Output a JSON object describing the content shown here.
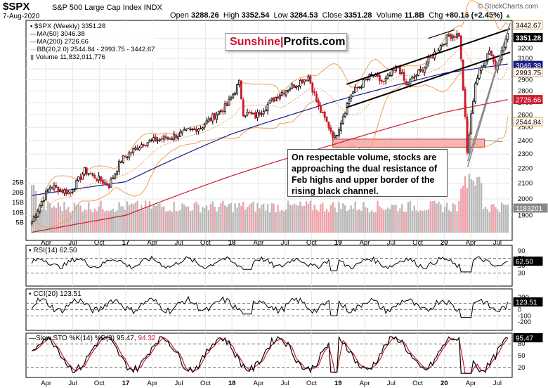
{
  "header": {
    "ticker": "$SPX",
    "name": "S&P 500 Large Cap Index INDX",
    "date": "7-Aug-2020",
    "open_label": "Open",
    "open": "3288.26",
    "high_label": "High",
    "high": "3352.54",
    "low_label": "Low",
    "low": "3284.53",
    "close_label": "Close",
    "close": "3351.28",
    "volume_label": "Volume",
    "volume": "11.8B",
    "chg_label": "Chg",
    "chg": "+80.16 (+2.45%)",
    "copyright": "© StockCharts.com",
    "chg_arrow_icon": "up-triangle-icon"
  },
  "legend": {
    "price": "$SPX (Weekly) 3351.28",
    "ma50": "MA(50) 3046.38",
    "ma200": "MA(200) 2726.66",
    "bb": "BB(20,2.0) 2544.84 - 2993.75 - 3442.67",
    "volume": "Volume 11,832,011,776"
  },
  "logo": {
    "part1": "Sunshine",
    "part2": "Profits.com"
  },
  "annotation": {
    "lines": [
      "On respectable volume, stocks are",
      "approaching the dual resistance of",
      "Feb highs and upper border of the",
      "rising black channel."
    ]
  },
  "price_badges": {
    "bb_upper": "3442.67",
    "close": "3351.28",
    "ma50": "3046.38",
    "bb_mid": "2993.75",
    "ma200": "2726.66",
    "bb_lower": "2544.84",
    "volume": "11832011776",
    "rsi": "62.50",
    "cci": "123.51",
    "sto": "95.47"
  },
  "panels": {
    "rsi_label": "RSI(14) 62.50",
    "cci_label": "CCI(20) 123.51",
    "sto_label_a": "Slow STO %K(14) %D(3) 95.47,",
    "sto_label_b": "94.32"
  },
  "colors": {
    "up": "#000000",
    "down": "#cc1b2b",
    "ma50": "#1a1f8c",
    "ma200": "#cc1b2b",
    "bb": "#f0a050",
    "volume_up": "#b8b8b8",
    "volume_down": "#f0a0a8",
    "rsi_fill": "#3d6b3d",
    "cci_fill_down": "#7a3030",
    "sto_k": "#000000",
    "sto_d": "#cc1b2b",
    "highlight_fill": "#f4a8a8",
    "logo_red": "#c8102e"
  },
  "chart_data": {
    "type": "candlestick",
    "price_axis": {
      "ylim": [
        1800,
        3500
      ],
      "ticks": [
        1900,
        2000,
        2100,
        2200,
        2300,
        2400,
        2500,
        2600,
        2700,
        2800,
        2900,
        3000,
        3100,
        3200,
        3300
      ],
      "log_scale": true
    },
    "volume_axis": {
      "ticks": [
        "5B",
        "10B",
        "15B",
        "20B",
        "25B"
      ]
    },
    "x_ticks": [
      "Apr",
      "Jul",
      "Oct",
      "17",
      "Apr",
      "Jul",
      "Oct",
      "18",
      "Apr",
      "Jul",
      "Oct",
      "19",
      "Apr",
      "Jul",
      "Oct",
      "20",
      "Apr",
      "Jul"
    ],
    "x_ticks_bottom": [
      "Apr",
      "Jul",
      "Oct",
      "17",
      "Apr",
      "Jul",
      "Oct",
      "18",
      "Apr",
      "Jul",
      "Oct",
      "19",
      "Apr",
      "Jul",
      "Oct",
      "20",
      "Apr",
      "Jul"
    ],
    "weekly_close_anchors": [
      [
        "2016-02-12",
        1865
      ],
      [
        "2016-04-15",
        2080
      ],
      [
        "2016-06-24",
        2037
      ],
      [
        "2016-08-12",
        2184
      ],
      [
        "2016-11-04",
        2085
      ],
      [
        "2016-12-16",
        2258
      ],
      [
        "2017-03-03",
        2383
      ],
      [
        "2017-06-16",
        2433
      ],
      [
        "2017-09-15",
        2500
      ],
      [
        "2017-12-15",
        2675
      ],
      [
        "2018-01-26",
        2872
      ],
      [
        "2018-02-09",
        2619
      ],
      [
        "2018-03-23",
        2588
      ],
      [
        "2018-06-15",
        2779
      ],
      [
        "2018-09-21",
        2930
      ],
      [
        "2018-10-26",
        2658
      ],
      [
        "2018-12-21",
        2416
      ],
      [
        "2019-02-15",
        2775
      ],
      [
        "2019-04-26",
        2940
      ],
      [
        "2019-06-07",
        2873
      ],
      [
        "2019-07-26",
        3025
      ],
      [
        "2019-08-23",
        2847
      ],
      [
        "2019-10-25",
        3023
      ],
      [
        "2020-01-17",
        3330
      ],
      [
        "2020-02-21",
        3337
      ],
      [
        "2020-03-20",
        2305
      ],
      [
        "2020-04-17",
        2875
      ],
      [
        "2020-06-05",
        3193
      ],
      [
        "2020-06-26",
        3009
      ],
      [
        "2020-07-24",
        3216
      ],
      [
        "2020-08-07",
        3351.28
      ]
    ],
    "ma50_anchors": [
      [
        2016.1,
        2020
      ],
      [
        2017.0,
        2110
      ],
      [
        2018.0,
        2450
      ],
      [
        2019.0,
        2720
      ],
      [
        2020.0,
        2960
      ],
      [
        2020.6,
        3046.38
      ]
    ],
    "ma200_anchors": [
      [
        2016.1,
        1800
      ],
      [
        2017.0,
        1900
      ],
      [
        2018.0,
        2150
      ],
      [
        2019.0,
        2380
      ],
      [
        2020.0,
        2620
      ],
      [
        2020.6,
        2726.66
      ]
    ],
    "bb_last": {
      "upper": 3442.67,
      "middle": 2993.75,
      "lower": 2544.84
    },
    "rsi": {
      "ylim": [
        0,
        100
      ],
      "ticks": [
        30,
        50,
        70,
        90
      ],
      "last": 62.5
    },
    "cci": {
      "ylim": [
        -300,
        300
      ],
      "ticks": [
        -200,
        -100,
        0,
        100,
        200
      ],
      "last": 123.51
    },
    "sto": {
      "ylim": [
        0,
        100
      ],
      "ticks": [
        20,
        50,
        80
      ],
      "k_last": 95.47,
      "d_last": 94.32
    },
    "trendlines": "rising black channel (upper and lower border), steep rising line from March 2020 low",
    "highlight_zone": {
      "y_range": [
        2350,
        2410
      ],
      "x_range": [
        "2018-12",
        "2020-05"
      ]
    }
  }
}
